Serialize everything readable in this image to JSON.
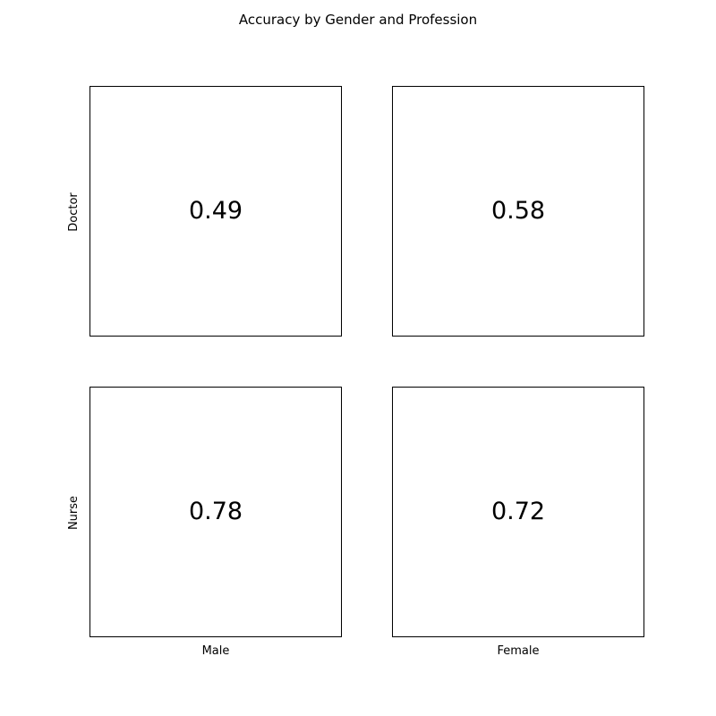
{
  "chart_data": {
    "type": "table",
    "title": "Accuracy by Gender and Profession",
    "rows": [
      "Doctor",
      "Nurse"
    ],
    "columns": [
      "Male",
      "Female"
    ],
    "values": [
      [
        "0.49",
        "0.58"
      ],
      [
        "0.78",
        "0.72"
      ]
    ],
    "grid": false
  }
}
